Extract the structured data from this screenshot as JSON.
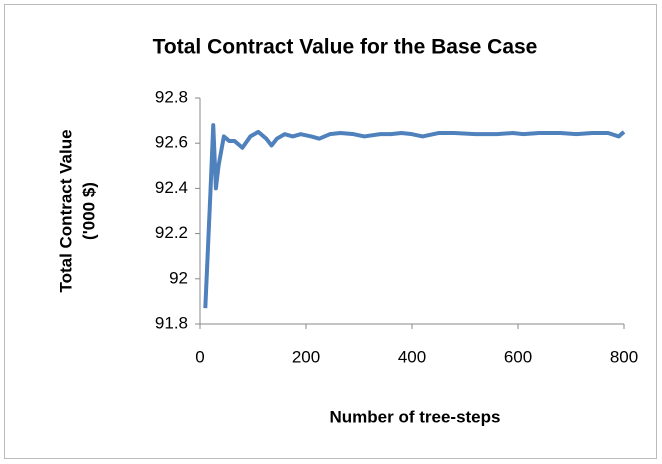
{
  "chart_data": {
    "type": "line",
    "title": "Total Contract Value for the Base Case",
    "x_label": "Number of tree-steps",
    "y_label": [
      "Total Contract Value",
      "('000 $)"
    ],
    "x": [
      10,
      20,
      25,
      30,
      35,
      45,
      55,
      65,
      80,
      95,
      110,
      125,
      135,
      145,
      160,
      175,
      190,
      210,
      225,
      245,
      265,
      290,
      310,
      340,
      360,
      380,
      400,
      420,
      450,
      480,
      520,
      560,
      590,
      610,
      640,
      680,
      710,
      740,
      770,
      790,
      800
    ],
    "values": [
      91.87,
      92.4,
      92.68,
      92.4,
      92.5,
      92.63,
      92.61,
      92.61,
      92.58,
      92.63,
      92.65,
      92.62,
      92.59,
      92.62,
      92.64,
      92.63,
      92.64,
      92.63,
      92.62,
      92.64,
      92.645,
      92.64,
      92.63,
      92.64,
      92.64,
      92.645,
      92.64,
      92.63,
      92.645,
      92.645,
      92.64,
      92.64,
      92.645,
      92.64,
      92.645,
      92.645,
      92.64,
      92.645,
      92.645,
      92.63,
      92.65
    ],
    "color": "#4f81bd",
    "xlim": [
      0,
      800
    ],
    "xticks": [
      0,
      200,
      400,
      600,
      800
    ],
    "ylim": [
      91.8,
      92.8
    ],
    "yticks": [
      91.8,
      92,
      92.2,
      92.4,
      92.6,
      92.8
    ],
    "grid": false
  }
}
